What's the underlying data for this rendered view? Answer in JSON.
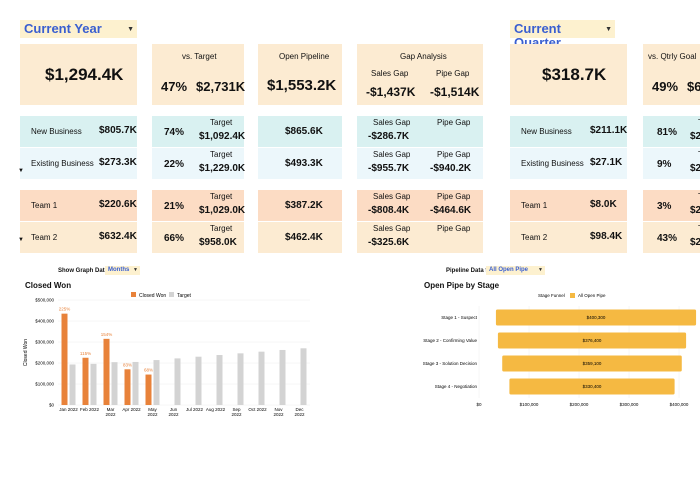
{
  "current_year": {
    "selector": "Current Year",
    "total": "$1,294.4K",
    "vs_target": {
      "header": "vs. Target",
      "pct": "47%",
      "amount": "$2,731K"
    },
    "open_pipeline": {
      "header": "Open Pipeline",
      "value": "$1,553.2K"
    },
    "gap": {
      "header": "Gap Analysis",
      "sales_label": "Sales Gap",
      "pipe_label": "Pipe Gap",
      "sales_value": "-$1,437K",
      "pipe_value": "-$1,514K"
    },
    "rows": [
      {
        "label": "New Business",
        "value": "$805.7K",
        "pct": "74%",
        "target_label": "Target",
        "target": "$1,092.4K",
        "pipeline": "$865.6K",
        "sales_label": "Sales Gap",
        "pipe_label": "Pipe Gap",
        "sales_gap": "-$286.7K",
        "pipe_gap": ""
      },
      {
        "label": "Existing Business",
        "value": "$273.3K",
        "pct": "22%",
        "target_label": "Target",
        "target": "$1,229.0K",
        "pipeline": "$493.3K",
        "sales_label": "Sales Gap",
        "pipe_label": "Pipe Gap",
        "sales_gap": "-$955.7K",
        "pipe_gap": "-$940.2K"
      },
      {
        "label": "Team 1",
        "value": "$220.6K",
        "pct": "21%",
        "target_label": "Target",
        "target": "$1,029.0K",
        "pipeline": "$387.2K",
        "sales_label": "Sales Gap",
        "pipe_label": "Pipe Gap",
        "sales_gap": "-$808.4K",
        "pipe_gap": "-$464.6K"
      },
      {
        "label": "Team 2",
        "value": "$632.4K",
        "pct": "66%",
        "target_label": "Target",
        "target": "$958.0K",
        "pipeline": "$462.4K",
        "sales_label": "Sales Gap",
        "pipe_label": "Pipe Gap",
        "sales_gap": "-$325.6K",
        "pipe_gap": ""
      }
    ]
  },
  "current_quarter": {
    "selector": "Current Quarter",
    "total": "$318.7K",
    "vs_target": {
      "header": "vs. Qtrly Goal",
      "pct": "49%",
      "amount": "$6"
    },
    "rows": [
      {
        "label": "New Business",
        "value": "$211.1K",
        "pct": "81%",
        "target_label": "T",
        "target": "$2"
      },
      {
        "label": "Existing Business",
        "value": "$27.1K",
        "pct": "9%",
        "target_label": "T",
        "target": "$2"
      },
      {
        "label": "Team 1",
        "value": "$8.0K",
        "pct": "3%",
        "target_label": "T",
        "target": "$2"
      },
      {
        "label": "Team 2",
        "value": "$98.4K",
        "pct": "43%",
        "target_label": "T",
        "target": "$2"
      }
    ]
  },
  "controls": {
    "graph_label": "Show Graph Data by:",
    "graph_value": "Months",
    "pipeline_label": "Pipeline Data for:",
    "pipeline_value": "All Open Pipe"
  },
  "colors": {
    "closed_won": "#e8823a",
    "target": "#d3d3d3",
    "funnel": "#f5b942",
    "selector_text": "#3a5fd0"
  },
  "chart_data": [
    {
      "type": "bar",
      "title": "Closed Won",
      "ylabel": "Closed Won",
      "ylim": [
        0,
        500000
      ],
      "yticks": [
        "$0",
        "$100,000",
        "$200,000",
        "$300,000",
        "$400,000",
        "$500,000"
      ],
      "categories": [
        "Jan 2022",
        "Feb 2022",
        "Mar 2022",
        "Apr 2022",
        "May 2022",
        "Jun 2022",
        "Jul 2022",
        "Aug 2022",
        "Sep 2022",
        "Oct 2022",
        "Nov 2022",
        "Dec 2022"
      ],
      "series": [
        {
          "name": "Closed Won",
          "values": [
            435000,
            225000,
            315000,
            170000,
            145000,
            null,
            null,
            null,
            null,
            null,
            null,
            null
          ]
        },
        {
          "name": "Target",
          "values": [
            193000,
            196000,
            204000,
            205000,
            214000,
            222000,
            230000,
            238000,
            246000,
            254000,
            262000,
            270000
          ]
        }
      ],
      "data_labels": [
        "225%",
        "115%",
        "154%",
        "83%",
        "68%"
      ],
      "legend": "top"
    },
    {
      "type": "bar",
      "orientation": "horizontal",
      "title": "Open Pipe by Stage",
      "legend_title": "Stage Funnel",
      "categories": [
        "Stage 1 - Suspect",
        "Stage 2 - Confirming Value",
        "Stage 3 - Solution Decision",
        "Stage 4 - Negotiation"
      ],
      "series": [
        {
          "name": "All Open Pipe",
          "values": [
            400300,
            376400,
            359100,
            330400
          ]
        }
      ],
      "value_labels": [
        "$400,300",
        "$376,400",
        "$359,100",
        "$330,400"
      ],
      "xlim": [
        0,
        420000
      ],
      "xticks": [
        "$0",
        "$100,000",
        "$200,000",
        "$300,000",
        "$400,000"
      ],
      "legend": "top"
    }
  ]
}
